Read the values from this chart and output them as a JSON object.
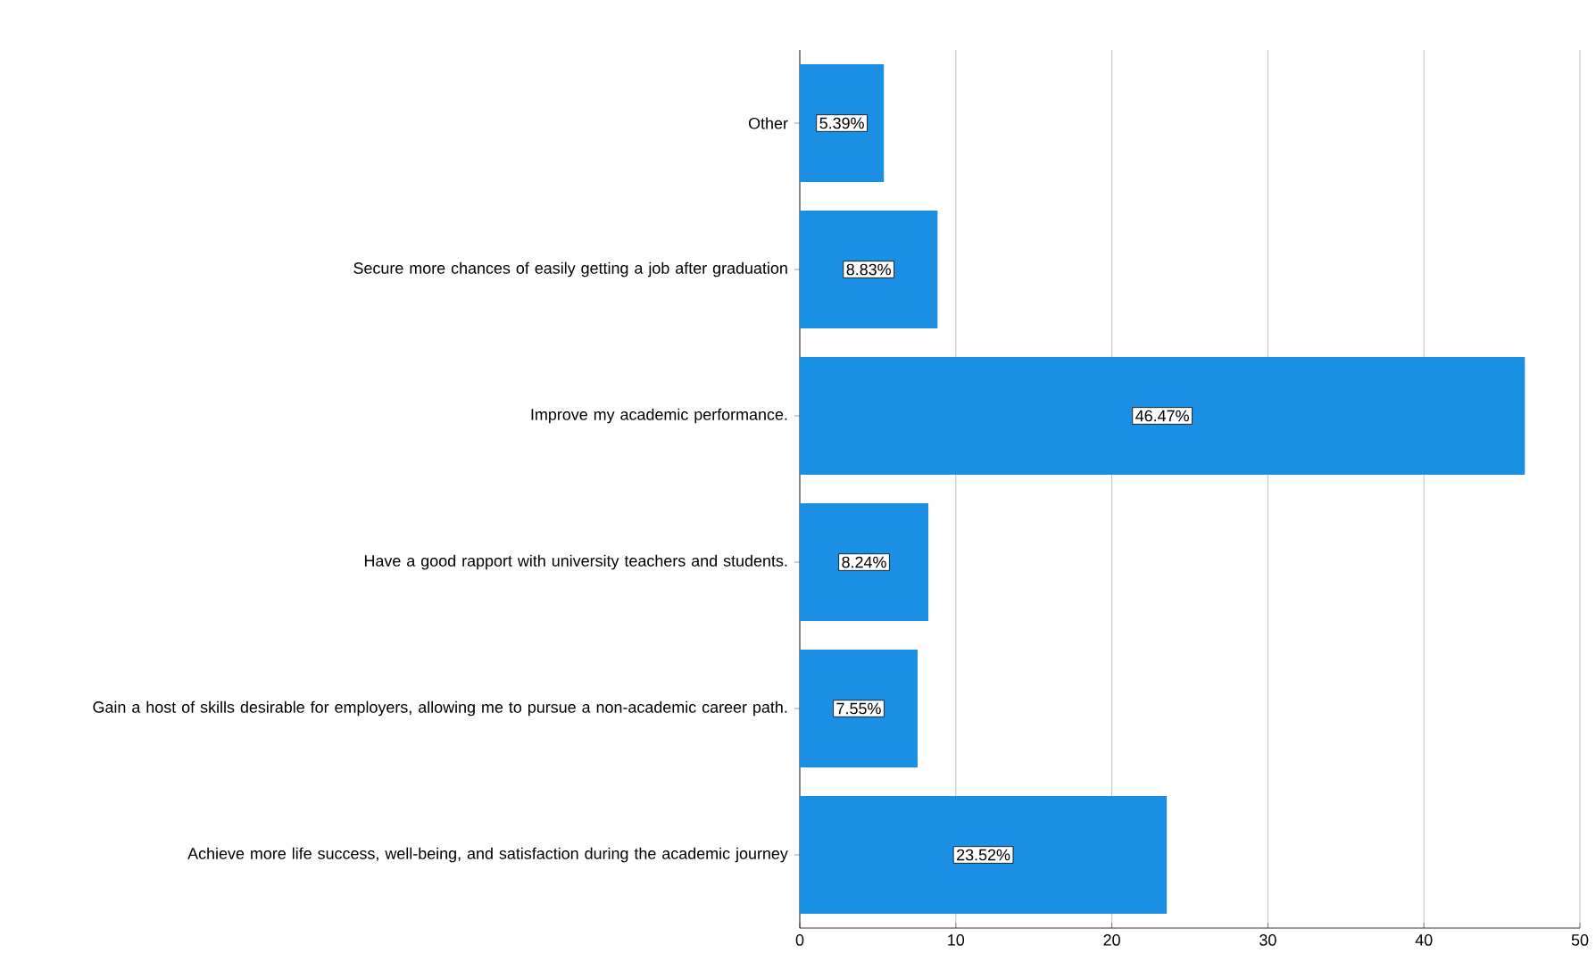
{
  "chart_data": {
    "type": "bar",
    "orientation": "horizontal",
    "categories": [
      "Other",
      "Secure more chances of easily getting a job after graduation",
      "Improve my academic performance.",
      "Have a good rapport with university teachers and students.",
      "Gain a host of skills desirable for employers, allowing me to pursue a non-academic career path.",
      "Achieve more life success, well-being, and satisfaction during the academic journey"
    ],
    "values": [
      5.39,
      8.83,
      46.47,
      8.24,
      7.55,
      23.52
    ],
    "value_labels": [
      "5.39%",
      "8.83%",
      "46.47%",
      "8.24%",
      "7.55%",
      "23.52%"
    ],
    "color": "#1a8fe3",
    "xlim": [
      0,
      50
    ],
    "xticks": [
      0,
      10,
      20,
      30,
      40,
      50
    ],
    "grid": "x"
  }
}
